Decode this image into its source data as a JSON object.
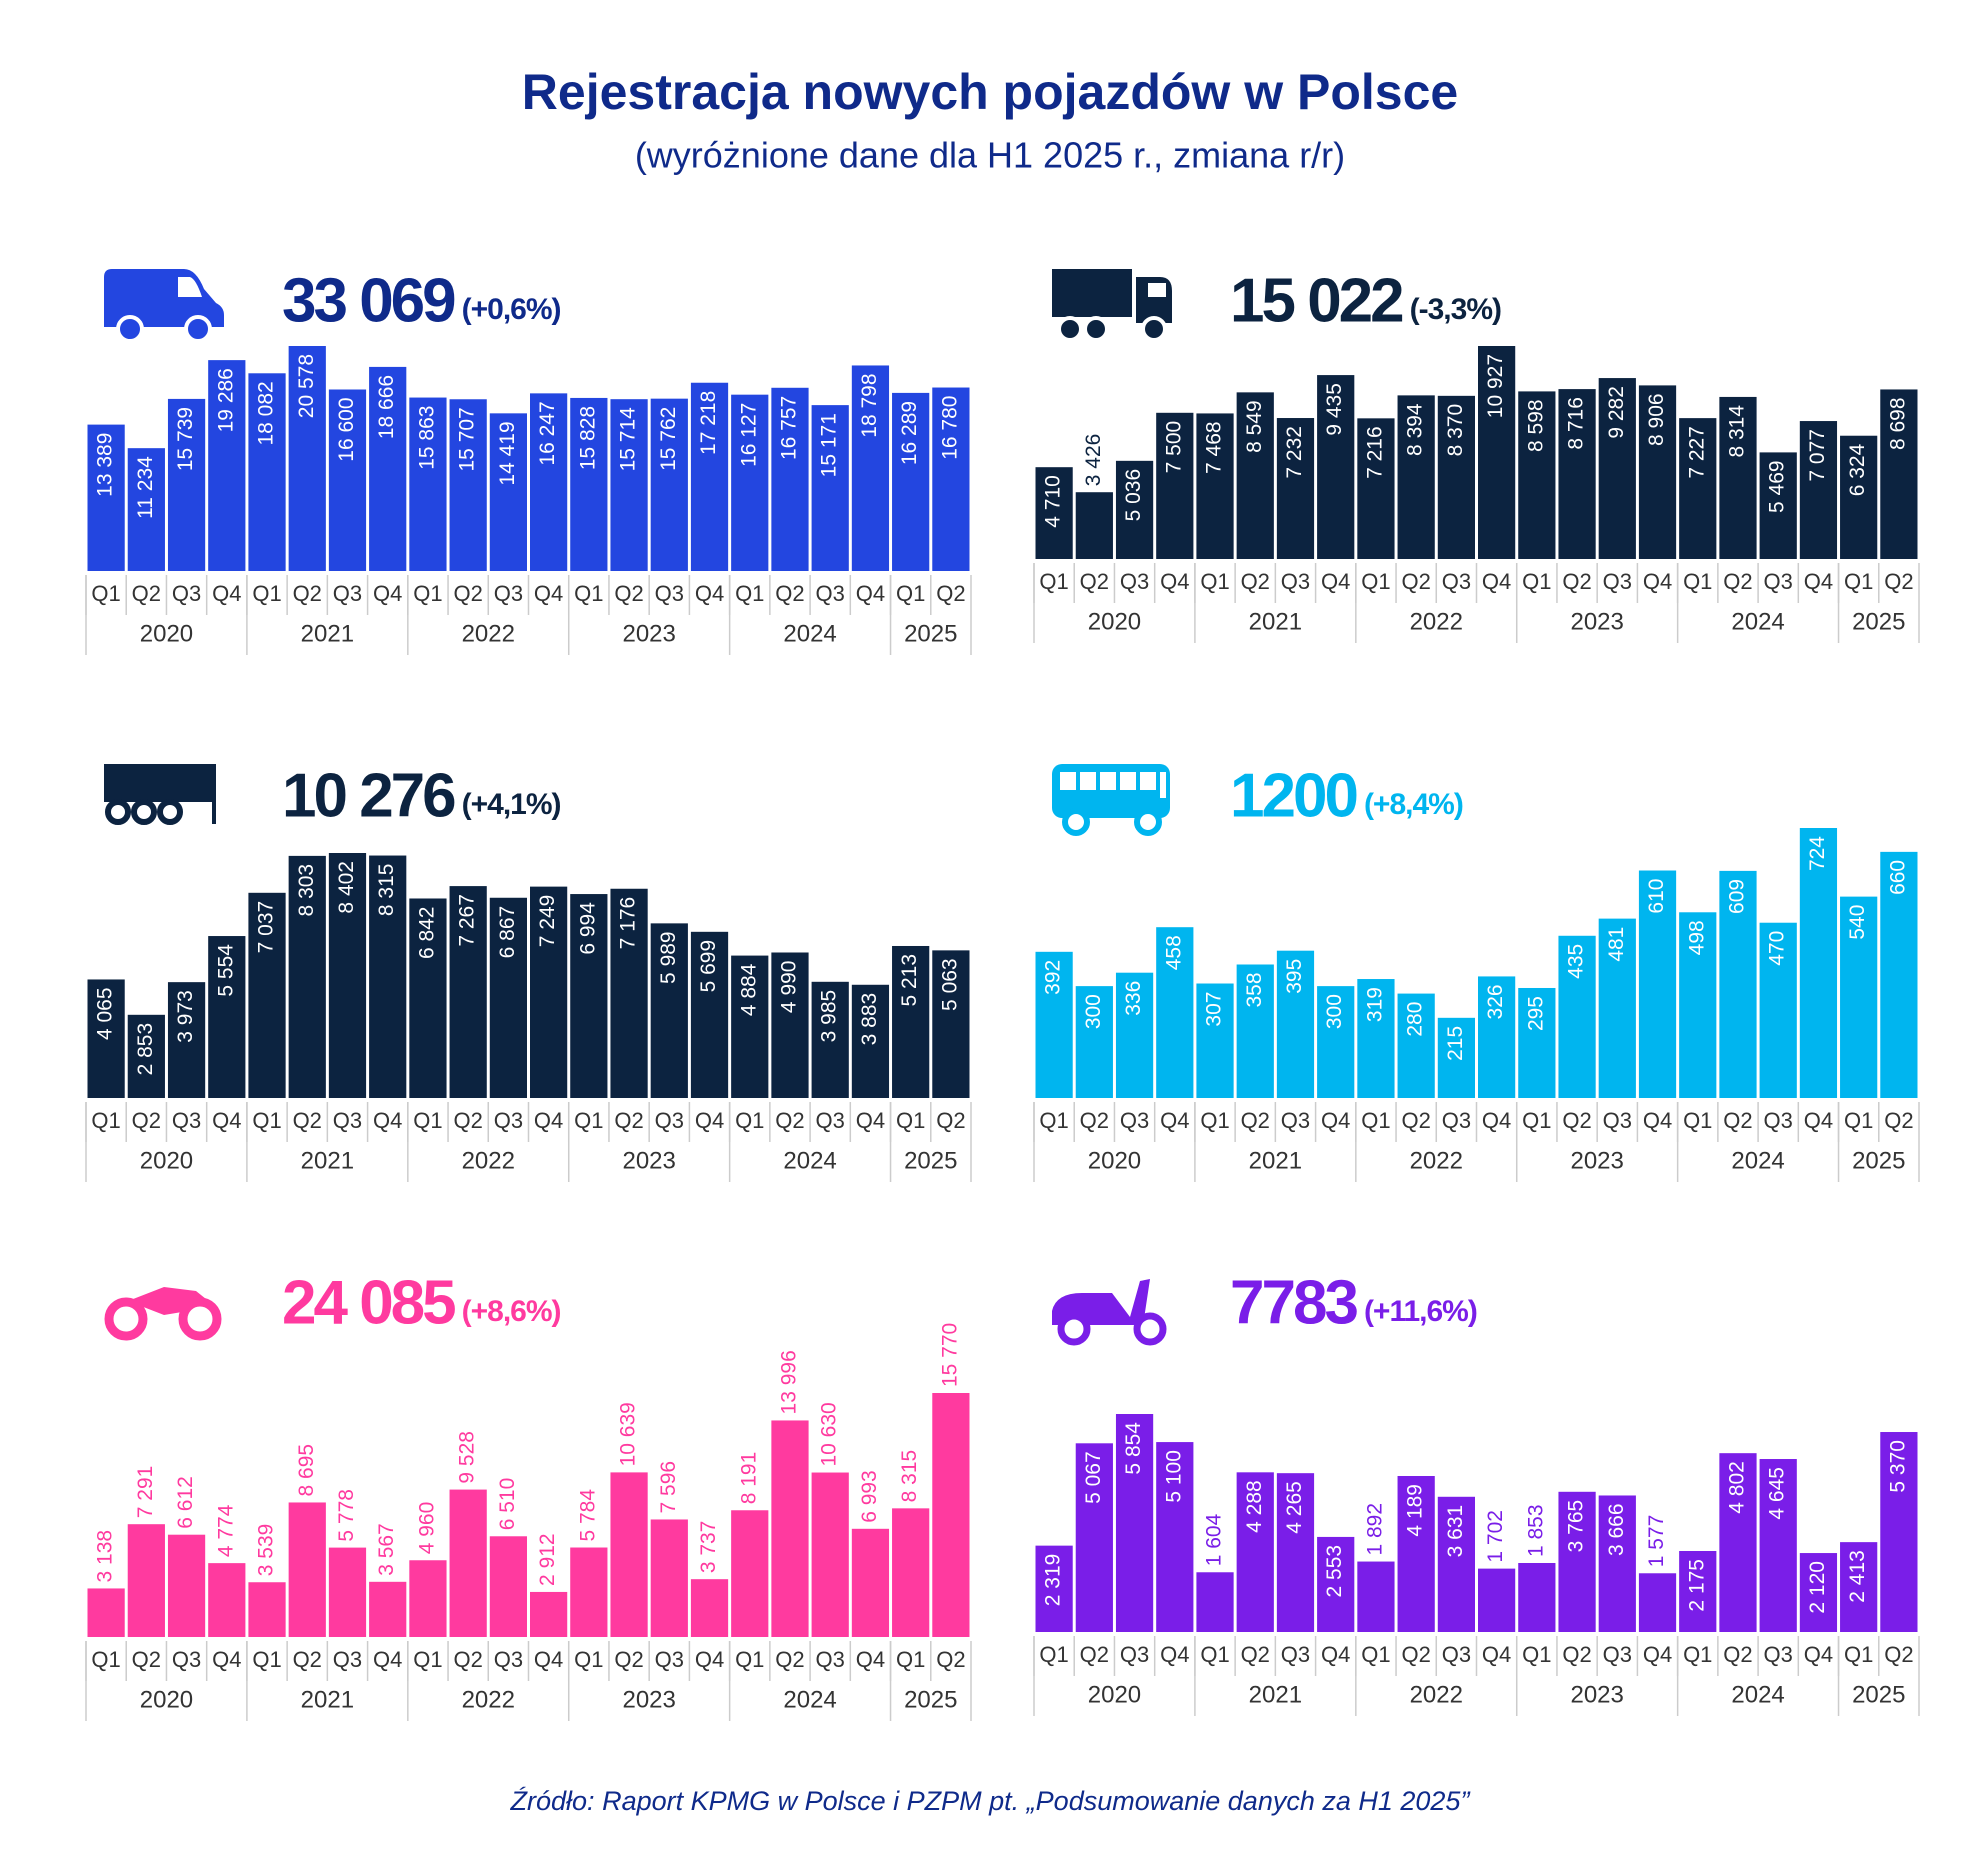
{
  "title": "Rejestracja nowych pojazdów w Polsce",
  "subtitle": "(wyróżnione dane dla H1 2025 r., zmiana r/r)",
  "source": "Źródło: Raport KPMG w Polsce i PZPM pt. „Podsumowanie danych za H1 2025”",
  "chart_data": [
    {
      "type": "bar",
      "headline": "33 069",
      "change": "(+0,6%)",
      "headline_color": "#0f2a8a",
      "color": "#2346e0",
      "label_position": "inside",
      "categories": [
        "Q1",
        "Q2",
        "Q3",
        "Q4",
        "Q1",
        "Q2",
        "Q3",
        "Q4",
        "Q1",
        "Q2",
        "Q3",
        "Q4",
        "Q1",
        "Q2",
        "Q3",
        "Q4",
        "Q1",
        "Q2",
        "Q3",
        "Q4",
        "Q1",
        "Q2"
      ],
      "years": [
        "2020",
        "2021",
        "2022",
        "2023",
        "2024",
        "2025"
      ],
      "values": [
        13389,
        11234,
        15739,
        19286,
        18082,
        20578,
        16600,
        18666,
        15863,
        15707,
        14419,
        16247,
        15828,
        15714,
        15762,
        17218,
        16127,
        16757,
        15171,
        18798,
        16289,
        16780
      ],
      "value_labels": [
        "13 389",
        "11 234",
        "15 739",
        "19 286",
        "18 082",
        "20 578",
        "16 600",
        "18 666",
        "15 863",
        "15 707",
        "14 419",
        "16 247",
        "15 828",
        "15 714",
        "15 762",
        "17 218",
        "16 127",
        "16 757",
        "15 171",
        "18 798",
        "16 289",
        "16 780"
      ]
    },
    {
      "type": "bar",
      "headline": "15 022",
      "change": "(-3,3%)",
      "headline_color": "#0c2340",
      "color": "#0c2340",
      "label_position": "inside",
      "categories": [
        "Q1",
        "Q2",
        "Q3",
        "Q4",
        "Q1",
        "Q2",
        "Q3",
        "Q4",
        "Q1",
        "Q2",
        "Q3",
        "Q4",
        "Q1",
        "Q2",
        "Q3",
        "Q4",
        "Q1",
        "Q2",
        "Q3",
        "Q4",
        "Q1",
        "Q2"
      ],
      "years": [
        "2020",
        "2021",
        "2022",
        "2023",
        "2024",
        "2025"
      ],
      "values": [
        4710,
        3426,
        5036,
        7500,
        7468,
        8549,
        7232,
        9435,
        7216,
        8394,
        8370,
        10927,
        8598,
        8716,
        9282,
        8906,
        7227,
        8314,
        5469,
        7077,
        6324,
        8698
      ],
      "value_labels": [
        "4 710",
        "3 426",
        "5 036",
        "7 500",
        "7 468",
        "8 549",
        "7 232",
        "9 435",
        "7 216",
        "8 394",
        "8 370",
        "10 927",
        "8 598",
        "8 716",
        "9 282",
        "8 906",
        "7 227",
        "8 314",
        "5 469",
        "7 077",
        "6 324",
        "8 698"
      ]
    },
    {
      "type": "bar",
      "headline": "10 276",
      "change": "(+4,1%)",
      "headline_color": "#0c2340",
      "color": "#0c2340",
      "label_position": "inside",
      "categories": [
        "Q1",
        "Q2",
        "Q3",
        "Q4",
        "Q1",
        "Q2",
        "Q3",
        "Q4",
        "Q1",
        "Q2",
        "Q3",
        "Q4",
        "Q1",
        "Q2",
        "Q3",
        "Q4",
        "Q1",
        "Q2",
        "Q3",
        "Q4",
        "Q1",
        "Q2"
      ],
      "years": [
        "2020",
        "2021",
        "2022",
        "2023",
        "2024",
        "2025"
      ],
      "values": [
        4065,
        2853,
        3973,
        5554,
        7037,
        8303,
        8402,
        8315,
        6842,
        7267,
        6867,
        7249,
        6994,
        7176,
        5989,
        5699,
        4884,
        4990,
        3985,
        3883,
        5213,
        5063
      ],
      "value_labels": [
        "4 065",
        "2 853",
        "3 973",
        "5 554",
        "7 037",
        "8 303",
        "8 402",
        "8 315",
        "6 842",
        "7 267",
        "6 867",
        "7 249",
        "6 994",
        "7 176",
        "5 989",
        "5 699",
        "4 884",
        "4 990",
        "3 985",
        "3 883",
        "5 213",
        "5 063"
      ]
    },
    {
      "type": "bar",
      "headline": "1200",
      "change": "(+8,4%)",
      "headline_color": "#00b5ef",
      "color": "#00b5ef",
      "label_position": "inside",
      "categories": [
        "Q1",
        "Q2",
        "Q3",
        "Q4",
        "Q1",
        "Q2",
        "Q3",
        "Q4",
        "Q1",
        "Q2",
        "Q3",
        "Q4",
        "Q1",
        "Q2",
        "Q3",
        "Q4",
        "Q1",
        "Q2",
        "Q3",
        "Q4",
        "Q1",
        "Q2"
      ],
      "years": [
        "2020",
        "2021",
        "2022",
        "2023",
        "2024",
        "2025"
      ],
      "values": [
        392,
        300,
        336,
        458,
        307,
        358,
        395,
        300,
        319,
        280,
        215,
        326,
        295,
        435,
        481,
        610,
        498,
        609,
        470,
        724,
        540,
        660
      ]
    },
    {
      "type": "bar",
      "headline": "24 085",
      "change": "(+8,6%)",
      "headline_color": "#ff3a9f",
      "color": "#ff3a9f",
      "label_position": "outside",
      "categories": [
        "Q1",
        "Q2",
        "Q3",
        "Q4",
        "Q1",
        "Q2",
        "Q3",
        "Q4",
        "Q1",
        "Q2",
        "Q3",
        "Q4",
        "Q1",
        "Q2",
        "Q3",
        "Q4",
        "Q1",
        "Q2",
        "Q3",
        "Q4",
        "Q1",
        "Q2"
      ],
      "years": [
        "2020",
        "2021",
        "2022",
        "2023",
        "2024",
        "2025"
      ],
      "values": [
        3138,
        7291,
        6612,
        4774,
        3539,
        8695,
        5778,
        3567,
        4960,
        9528,
        6510,
        2912,
        5784,
        10639,
        7596,
        3737,
        8191,
        13996,
        10630,
        6993,
        8315,
        15770
      ],
      "value_labels": [
        "3 138",
        "7 291",
        "6 612",
        "4 774",
        "3 539",
        "8 695",
        "5 778",
        "3 567",
        "4 960",
        "9 528",
        "6 510",
        "2 912",
        "5 784",
        "10 639",
        "7 596",
        "3 737",
        "8 191",
        "13 996",
        "10 630",
        "6 993",
        "8 315",
        "15 770"
      ]
    },
    {
      "type": "bar",
      "headline": "7783",
      "change": "(+11,6%)",
      "headline_color": "#7a1ee8",
      "color": "#7a1ee8",
      "label_position": "inside",
      "categories": [
        "Q1",
        "Q2",
        "Q3",
        "Q4",
        "Q1",
        "Q2",
        "Q3",
        "Q4",
        "Q1",
        "Q2",
        "Q3",
        "Q4",
        "Q1",
        "Q2",
        "Q3",
        "Q4",
        "Q1",
        "Q2",
        "Q3",
        "Q4",
        "Q1",
        "Q2"
      ],
      "years": [
        "2020",
        "2021",
        "2022",
        "2023",
        "2024",
        "2025"
      ],
      "values": [
        2319,
        5067,
        5854,
        5100,
        1604,
        4288,
        4265,
        2553,
        1892,
        4189,
        3631,
        1702,
        1853,
        3765,
        3666,
        1577,
        2175,
        4802,
        4645,
        2120,
        2413,
        5370
      ],
      "value_labels": [
        "2 319",
        "5 067",
        "5 854",
        "5 100",
        "1 604",
        "4 288",
        "4 265",
        "2 553",
        "1 892",
        "4 189",
        "3 631",
        "1 702",
        "1 853",
        "3 765",
        "3 666",
        "1 577",
        "2 175",
        "4 802",
        "4 645",
        "2 120",
        "2 413",
        "5 370"
      ]
    }
  ]
}
